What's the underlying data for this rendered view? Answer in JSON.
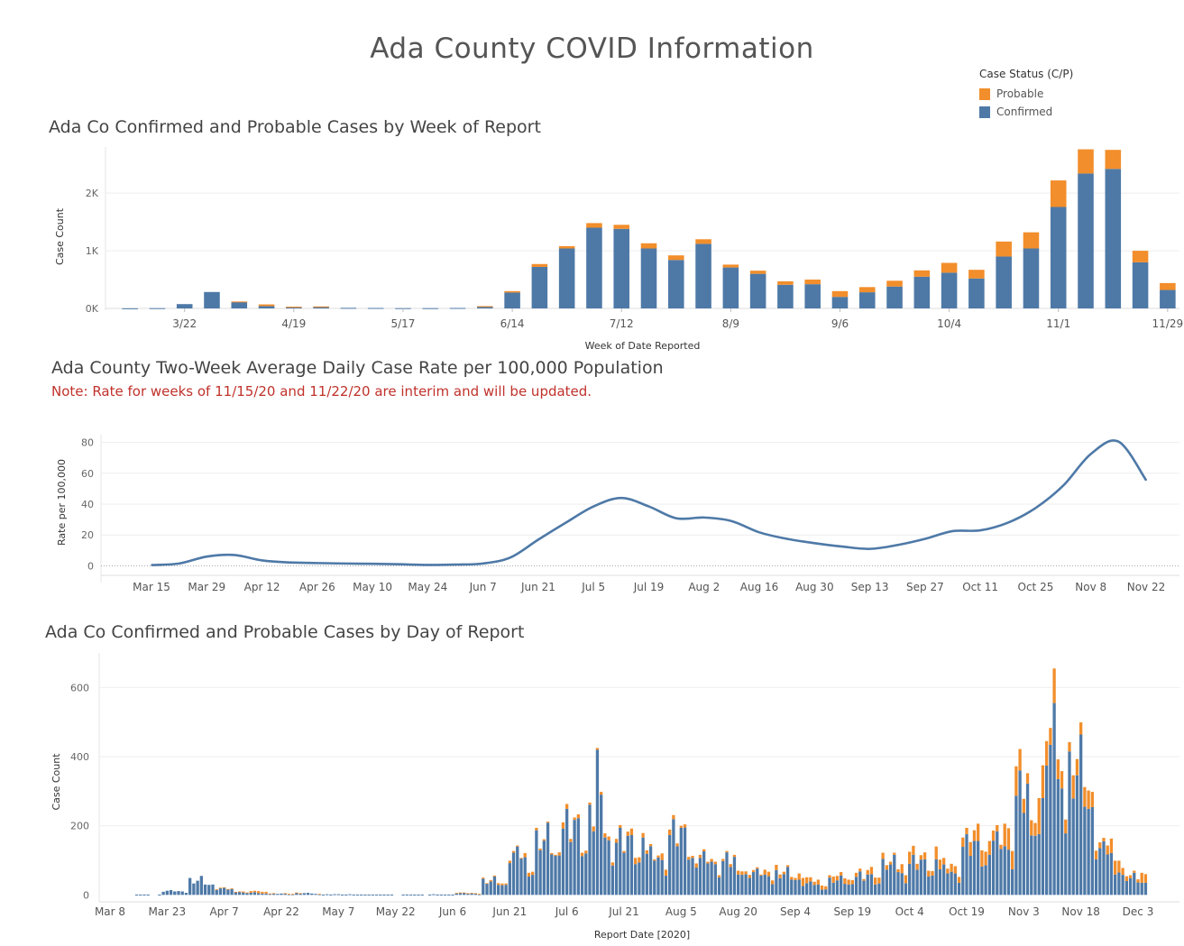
{
  "header": {
    "title": "Ada County COVID Information"
  },
  "legend": {
    "title": "Case Status (C/P)",
    "items": [
      {
        "label": "Probable",
        "color": "#f28e2b"
      },
      {
        "label": "Confirmed",
        "color": "#4e79a7"
      }
    ]
  },
  "chart_data": [
    {
      "type": "bar",
      "stacked": true,
      "title": "Ada Co Confirmed and Probable Cases by Week of Report",
      "xlabel": "Week of Date Reported",
      "ylabel": "Case Count",
      "ylim": [
        0,
        2800
      ],
      "yticks": [
        0,
        1000,
        2000
      ],
      "ytick_labels": [
        "0K",
        "1K",
        "2K"
      ],
      "grid": true,
      "x_tick_labels": [
        "3/22",
        "4/19",
        "5/17",
        "6/14",
        "7/12",
        "8/9",
        "9/6",
        "10/4",
        "11/1",
        "11/29"
      ],
      "categories": [
        "3/8",
        "3/15",
        "3/22",
        "3/29",
        "4/5",
        "4/12",
        "4/19",
        "4/26",
        "5/3",
        "5/10",
        "5/17",
        "5/24",
        "5/31",
        "6/7",
        "6/14",
        "6/21",
        "6/28",
        "7/5",
        "7/12",
        "7/19",
        "7/26",
        "8/2",
        "8/9",
        "8/16",
        "8/23",
        "8/30",
        "9/6",
        "9/13",
        "9/20",
        "9/27",
        "10/4",
        "10/11",
        "10/18",
        "10/25",
        "11/1",
        "11/8",
        "11/15",
        "11/22",
        "11/29"
      ],
      "series": [
        {
          "name": "Confirmed",
          "color": "#4e79a7",
          "values": [
            2,
            5,
            75,
            285,
            110,
            40,
            25,
            30,
            10,
            8,
            5,
            5,
            8,
            30,
            275,
            720,
            1040,
            1400,
            1380,
            1040,
            840,
            1120,
            710,
            600,
            410,
            420,
            200,
            280,
            380,
            550,
            620,
            520,
            900,
            1040,
            1760,
            2340,
            2420,
            800,
            320
          ]
        },
        {
          "name": "Probable",
          "color": "#f28e2b",
          "values": [
            0,
            0,
            0,
            0,
            10,
            30,
            5,
            5,
            0,
            0,
            0,
            0,
            0,
            10,
            25,
            50,
            40,
            80,
            70,
            90,
            80,
            80,
            50,
            55,
            60,
            80,
            100,
            90,
            100,
            110,
            170,
            150,
            260,
            280,
            460,
            420,
            330,
            200,
            120
          ]
        }
      ]
    },
    {
      "type": "line",
      "title": "Ada County Two-Week Average Daily Case Rate per 100,000 Population",
      "note": "Note: Rate for weeks of 11/15/20 and 11/22/20 are interim and will be updated.",
      "xlabel": "",
      "ylabel": "Rate per 100,000",
      "ylim": [
        -5,
        85
      ],
      "yticks": [
        0,
        20,
        40,
        60,
        80
      ],
      "grid": true,
      "x": [
        "Mar 15",
        "Mar 22",
        "Mar 29",
        "Apr 5",
        "Apr 12",
        "Apr 19",
        "Apr 26",
        "May 3",
        "May 10",
        "May 17",
        "May 24",
        "May 31",
        "Jun 7",
        "Jun 14",
        "Jun 21",
        "Jun 28",
        "Jul 5",
        "Jul 12",
        "Jul 19",
        "Jul 26",
        "Aug 2",
        "Aug 9",
        "Aug 16",
        "Aug 23",
        "Aug 30",
        "Sep 6",
        "Sep 13",
        "Sep 20",
        "Sep 27",
        "Oct 4",
        "Oct 11",
        "Oct 18",
        "Oct 25",
        "Nov 1",
        "Nov 8",
        "Nov 15",
        "Nov 22"
      ],
      "x_tick_labels": [
        "Mar 15",
        "Mar 29",
        "Apr 12",
        "Apr 26",
        "May 10",
        "May 24",
        "Jun 7",
        "Jun 21",
        "Jul 5",
        "Jul 19",
        "Aug 2",
        "Aug 16",
        "Aug 30",
        "Sep 13",
        "Sep 27",
        "Oct 11",
        "Oct 25",
        "Nov 8",
        "Nov 22"
      ],
      "series": [
        {
          "name": "",
          "color": "#4e79a7",
          "values": [
            0.5,
            1.5,
            6,
            7,
            3.5,
            2.2,
            1.8,
            1.5,
            1.3,
            1,
            0.6,
            0.8,
            1.5,
            5.5,
            17,
            28,
            38.5,
            44,
            38.5,
            30.8,
            31.3,
            29,
            21.7,
            17.5,
            14.7,
            12.5,
            11,
            13.5,
            17.5,
            22.5,
            23,
            28,
            37.5,
            52,
            72.5,
            80.5,
            55.5
          ]
        }
      ]
    },
    {
      "type": "bar",
      "stacked": true,
      "title": "Ada Co Confirmed and Probable Cases by Day of Report",
      "xlabel": "Report Date [2020]",
      "ylabel": "Case Count",
      "ylim": [
        -20,
        700
      ],
      "yticks": [
        0,
        200,
        400,
        600
      ],
      "grid": true,
      "x_start": "2020-03-08",
      "x_tick_labels": [
        "Mar 8",
        "Mar 23",
        "Apr 7",
        "Apr 22",
        "May 7",
        "May 22",
        "Jun 6",
        "Jun 21",
        "Jul 6",
        "Jul 21",
        "Aug 5",
        "Aug 20",
        "Sep 4",
        "Sep 19",
        "Oct 4",
        "Oct 19",
        "Nov 3",
        "Nov 18",
        "Dec 3"
      ],
      "weekly_confirmed": [
        2,
        5,
        75,
        285,
        110,
        40,
        25,
        30,
        10,
        8,
        5,
        5,
        8,
        30,
        275,
        720,
        1040,
        1400,
        1380,
        1040,
        840,
        1120,
        710,
        600,
        410,
        420,
        200,
        280,
        380,
        550,
        620,
        520,
        900,
        1040,
        1760,
        2340,
        2420,
        800,
        320
      ],
      "weekly_probable": [
        0,
        0,
        0,
        0,
        10,
        30,
        5,
        5,
        0,
        0,
        0,
        0,
        0,
        10,
        25,
        50,
        40,
        80,
        70,
        90,
        80,
        80,
        50,
        55,
        60,
        80,
        100,
        90,
        100,
        110,
        170,
        150,
        260,
        280,
        460,
        420,
        330,
        200,
        120
      ],
      "spikes": [
        {
          "date": "2020-07-14",
          "confirmed": 420,
          "probable": 5
        },
        {
          "date": "2020-11-11",
          "confirmed": 555,
          "probable": 100
        }
      ]
    }
  ]
}
